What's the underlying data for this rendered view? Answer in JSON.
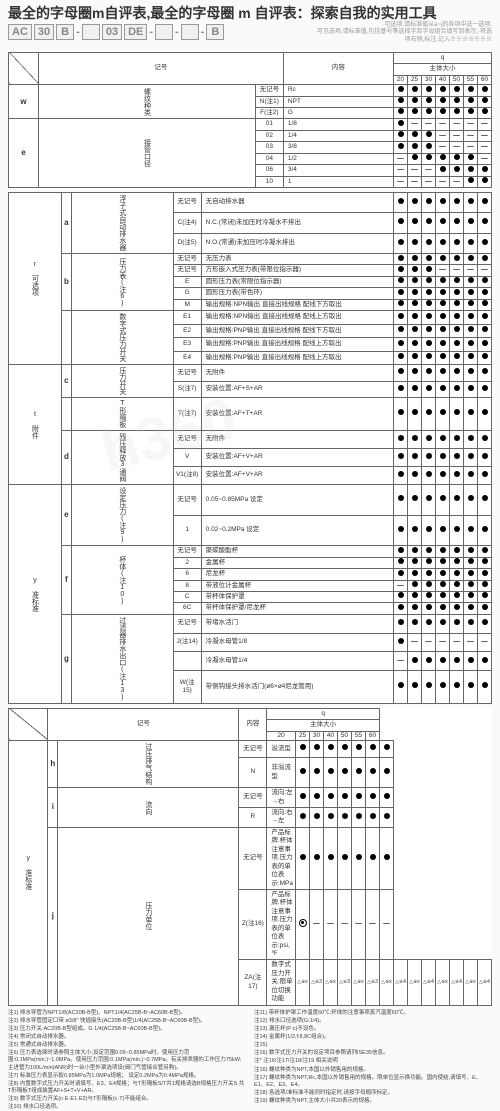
{
  "header": {
    "title": "最全的字母圈m自评表,最全的字母圈 m 自评表：探索自我的实用工具",
    "code_parts": [
      "AC",
      "30",
      "B",
      "-",
      "",
      "03",
      "DE",
      "-",
      "",
      "-",
      "",
      "-",
      "B"
    ],
    "note1": "·可选项,请标准值从a~j的各项中选一选项.",
    "note2": "·可见选项,请标准值,包括基号等选择字及字母组合填写到表示,·将选项右侧,标注,记入※※※※※※※"
  },
  "table1": {
    "headers": {
      "kigo": "记号",
      "naiyo": "内容",
      "q": "q",
      "shutai": "主体大小"
    },
    "sizes": [
      "20",
      "25",
      "30",
      "40",
      "50",
      "55",
      "60"
    ]
  },
  "groups": [
    {
      "key": "w",
      "label": "螺纹种类",
      "rows": [
        {
          "code": "无记号",
          "content": "Rc",
          "pat": "ddddddd"
        },
        {
          "code": "N(注1)",
          "content": "NPT",
          "pat": "ddddddd"
        },
        {
          "code": "F(注2)",
          "content": "G",
          "pat": "ddddddd"
        }
      ]
    },
    {
      "key": "e",
      "label": "接管口径",
      "rows": [
        {
          "code": "01",
          "content": "1/8",
          "pat": "d------"
        },
        {
          "code": "02",
          "content": "1/4",
          "pat": "ddd----"
        },
        {
          "code": "03",
          "content": "3/8",
          "pat": "ddd----"
        },
        {
          "code": "04",
          "content": "1/2",
          "pat": "-ddddd-"
        },
        {
          "code": "06",
          "content": "3/4",
          "pat": "---dddd"
        },
        {
          "code": "10",
          "content": "1",
          "pat": "-----dd"
        }
      ]
    }
  ],
  "option_groups": [
    {
      "side": "r 可选项",
      "subs": [
        {
          "key": "a",
          "label": "浮子式自动排水器",
          "rows": [
            {
              "code": "无记号",
              "content": "无自动排水器",
              "pat": "ddddddd"
            },
            {
              "code": "C(注4)",
              "content": "N.C.(常闭)未加压时冷凝水不排出",
              "pat": "ddddddd"
            },
            {
              "code": "D(注5)",
              "content": "N.O.(常通)未加压时冷凝水排出",
              "pat": "ddddddd"
            }
          ]
        },
        {
          "key": "b",
          "label": "压力表(注6)",
          "rows": [
            {
              "code": "无记号",
              "content": "无压力表",
              "pat": "ddddddd"
            },
            {
              "code": "无记号",
              "content": "方形嵌入式压力表(带限位指示器)",
              "pat": "ddd----"
            },
            {
              "code": "E",
              "content": "圆形压力表(常限位指示器)",
              "pat": "ddddddd"
            },
            {
              "code": "G",
              "content": "圆形压力表(带色环)",
              "pat": "ddddddd"
            },
            {
              "code": "M",
              "content": "输出规格:NPN输出 直接出线规格 配线下方取出",
              "pat": "ddddddd"
            }
          ]
        },
        {
          "key": "",
          "label": "数字式压力开关",
          "rows": [
            {
              "code": "E1",
              "content": "输出规格:NPN输出 直接出线规格 配线上方取出",
              "pat": "ddddddd"
            },
            {
              "code": "E2",
              "content": "输出规格:PNP输出 直接出线规格 配线下方取出",
              "pat": "ddddddd"
            },
            {
              "code": "E3",
              "content": "输出规格:PNP输出 直接出线规格 配线上方取出",
              "pat": "ddddddd"
            },
            {
              "code": "E4",
              "content": "输出规格:PNP输出 直接出线规格 配线上方取出",
              "pat": "ddddddd"
            }
          ]
        }
      ]
    },
    {
      "side": "t 附件",
      "subs": [
        {
          "key": "c",
          "label": "压力开关",
          "rows": [
            {
              "code": "无记号",
              "content": "无附件",
              "pat": "ddddddd"
            },
            {
              "code": "S(注7)",
              "content": "安装位置:AF+S+AR",
              "pat": "ddddddd"
            }
          ]
        },
        {
          "key": "",
          "label": "T形隔板",
          "rows": [
            {
              "code": "T(注7)",
              "content": "安装位置:AF+T+AR",
              "pat": "ddddddd"
            }
          ]
        },
        {
          "key": "d",
          "label": "残压释放3通阀",
          "rows": [
            {
              "code": "无记号",
              "content": "无附件",
              "pat": "ddddddd"
            },
            {
              "code": "V",
              "content": "安装位置:AF+V+AR",
              "pat": "ddddddd"
            },
            {
              "code": "V1(注8)",
              "content": "安装位置:AF+V+AR",
              "pat": "ddddddd"
            }
          ]
        }
      ]
    },
    {
      "side": "y 准标准",
      "subs": [
        {
          "key": "e",
          "label": "设定压力(注9)",
          "rows": [
            {
              "code": "无记号",
              "content": "0.05~0.85MPa 设定",
              "pat": "ddddddd"
            },
            {
              "code": "1",
              "content": "0.02~0.2MPa 设定",
              "pat": "ddddddd"
            }
          ]
        },
        {
          "key": "f",
          "label": "杯体(注10)",
          "rows": [
            {
              "code": "无记号",
              "content": "聚碳酸酯杯",
              "pat": "ddddddd"
            },
            {
              "code": "2",
              "content": "金属杯",
              "pat": "ddddddd"
            },
            {
              "code": "6",
              "content": "尼龙杯",
              "pat": "ddddddd"
            },
            {
              "code": "8",
              "content": "带液位计金属杯",
              "pat": "-dddddd"
            },
            {
              "code": "C",
              "content": "带杯体保护罩",
              "pat": "ddddddd"
            },
            {
              "code": "6C",
              "content": "带杯体保护罩/尼龙杯",
              "pat": "ddddddd"
            }
          ]
        },
        {
          "key": "g",
          "label": "过滤器排水出口(注13)",
          "rows": [
            {
              "code": "无记号",
              "content": "带堵水活门",
              "pat": "ddddddd"
            },
            {
              "code": "J(注14)",
              "content": "冷凝水母管1/8",
              "pat": "d------"
            },
            {
              "code": "",
              "content": "冷凝水母管1/4",
              "pat": "-dddddd"
            },
            {
              "code": "W(注15)",
              "content": "带侧钩接头排水活门(ø6×ø4尼龙管用)",
              "pat": "ddddddd"
            }
          ]
        }
      ]
    }
  ],
  "table2_groups": [
    {
      "key": "h",
      "label": "过压排气结构",
      "rows": [
        {
          "code": "无记号",
          "content": "溢流型",
          "pat": "ddddddd"
        },
        {
          "code": "N",
          "content": "非溢流型",
          "pat": "ddddddd"
        }
      ]
    },
    {
      "key": "i",
      "label": "流向",
      "rows": [
        {
          "code": "无记号",
          "content": "流向:左→右",
          "pat": "ddddddd"
        },
        {
          "code": "R",
          "content": "流向:右→左",
          "pat": "ddddddd"
        }
      ]
    },
    {
      "key": "j",
      "label": "压力单位",
      "rows": [
        {
          "code": "无记号",
          "content": "产品标牌.杯体注意事项.压力表的单位表示:MPa",
          "pat": "ddddddd"
        },
        {
          "code": "Z(注16)",
          "content": "产品标牌.杯体注意事项.压力表的单位表示:psi,℉",
          "pat": "o------"
        },
        {
          "code": "ZA(注17)",
          "content": "数字式压力开关:限单位切换功能",
          "pat": "x3x3x3x4x4x4x4"
        }
      ]
    }
  ],
  "notes": [
    "注1) 排水导管为NPT1/8(AC20B-B型)、NPT1/4(AC25B-B~AC60B-B型)。",
    "注2) 排水导管固定口带 ø3/8\" 快插接头(AC20B-B型)1/4(AC25B-B~AC60B-B型)。",
    "注3) 压力开关:AC20B-B型组成。G 1/4(AC25B-B~AC60B-B型)。",
    "注4) 常闭式自动排水器。",
    "注5) 常通式自动排水器。",
    "注6) 压力表选择时请参照主体大小;设定范围0.05~0.85MPa时。使用压力范围:0.1MPa(min.)~1.0MPa。使用压力范围:0.1MPa(min.)~0.7MPa。有关排泄器的工作压力75kW;主进管为100L/min(ANR)时一台小型外罩选项设(阀门气管接合管另购)。",
    "注7) 标准压力表显示扳0.85MPa为1.0MPa规格；  设定0.2MPa为0.4MPa规格。",
    "注8) 内置数字式压力开关时请填写、E3、E4规格；与T形隔板S/T共1规格请选B规格压力开关S 共T形隔板T组成装置AF+S+T+V+AR。",
    "注9) 数字式压力开关(c·E·E1·E2)与T形隔板(c·T)不能组合。",
    "注10) 排水口径选项。",
    "注11) 带杯体护罩工作温度60℃;杯体的注意事项蒸汽温度60℃。",
    "注12) 排水口径选项(G:1/4)。",
    "注13) 漏压杯(P·c)不设色。",
    "注14) 金属杯(1/2,f:8,8C组合)。",
    "注15) ",
    "注16) 数字式压力开关的设定项目参照请列ISE35信息。",
    "注* 注16/注17/注18/注19 相关说明",
    "注16) 螺纹种类为NPT,本国以外销售用的规格。",
    "注17) 螺纹种类为NPT,Rc,本国以外销售用的规格。限单位显示换功能。国内使结,请填写、E、E1、E2、E3、E4。",
    "注18) 各选项/准标准不能同时指定时,请按字母顺序标定。",
    "注19) 螺纹种类为NPT,主体大小共20表示的规格。"
  ]
}
